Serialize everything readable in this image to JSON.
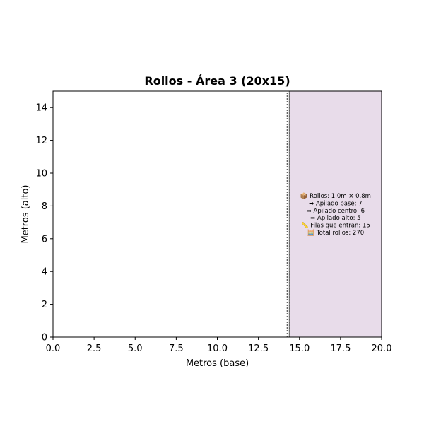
{
  "chart_data": {
    "type": "area",
    "title": "Rollos - Área 3 (20x15)",
    "xlabel": "Metros (base)",
    "ylabel": "Metros (alto)",
    "xlim": [
      0,
      20
    ],
    "ylim": [
      0,
      15
    ],
    "xticks": [
      "0.0",
      "2.5",
      "5.0",
      "7.5",
      "10.0",
      "12.5",
      "15.0",
      "17.5",
      "20.0"
    ],
    "yticks": [
      "0",
      "2",
      "4",
      "6",
      "8",
      "10",
      "12",
      "14"
    ],
    "grid": false,
    "region": {
      "x_start": 14.4,
      "x_end": 20,
      "y_start": 0,
      "y_end": 15,
      "color": "#e8dcea",
      "edge_color": "#808080"
    },
    "boundary_line_x": 14.25,
    "annotation": {
      "x": 17.2,
      "y": 7.5,
      "lines": [
        "📦 Rollos: 1.0m × 0.8m",
        "➡ Apilado base: 7",
        "➡ Apilado centro: 6",
        "➡ Apilado alto: 5",
        "📏 Filas que entran: 15",
        "🧮 Total rollos: 270"
      ]
    }
  }
}
